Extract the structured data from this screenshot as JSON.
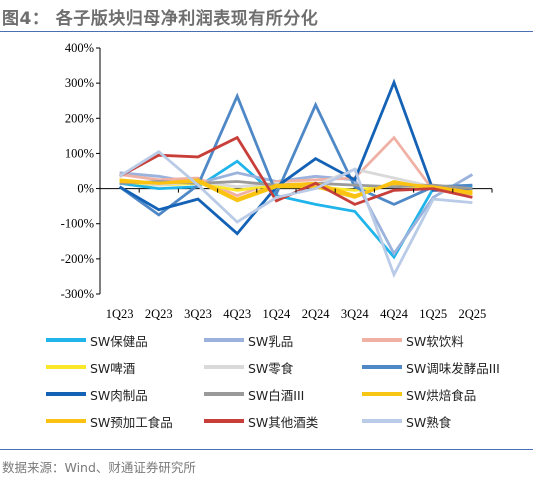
{
  "header": {
    "title": "图4：  各子版块归母净利润表现有所分化",
    "source": "数据来源：Wind、财通证券研究所"
  },
  "chart_data": {
    "type": "line",
    "categories": [
      "1Q23",
      "2Q23",
      "3Q23",
      "4Q23",
      "1Q24",
      "2Q24",
      "3Q24",
      "4Q24",
      "1Q25",
      "2Q25"
    ],
    "ylim": [
      -300,
      400
    ],
    "yticks": [
      -300,
      -200,
      -100,
      0,
      100,
      200,
      300,
      400
    ],
    "ytick_labels": [
      "-300%",
      "-200%",
      "-100%",
      "0%",
      "100%",
      "200%",
      "300%",
      "400%"
    ],
    "grid": false,
    "legend_position": "bottom",
    "series": [
      {
        "name": "SW保健品",
        "color": "#1fb4ea",
        "values": [
          15,
          0,
          5,
          78,
          -20,
          -45,
          -65,
          -195,
          0,
          5
        ]
      },
      {
        "name": "SW乳品",
        "color": "#9bb3dc",
        "values": [
          45,
          35,
          15,
          45,
          20,
          35,
          25,
          -185,
          -25,
          40
        ]
      },
      {
        "name": "SW软饮料",
        "color": "#f0b1a5",
        "values": [
          40,
          25,
          30,
          -20,
          20,
          25,
          30,
          145,
          -5,
          -15
        ]
      },
      {
        "name": "SW啤酒",
        "color": "#fbe72a",
        "values": [
          20,
          10,
          15,
          -5,
          10,
          5,
          -5,
          10,
          0,
          -5
        ]
      },
      {
        "name": "SW零食",
        "color": "#d9d9d9",
        "values": [
          25,
          10,
          20,
          5,
          15,
          10,
          55,
          30,
          5,
          0
        ]
      },
      {
        "name": "SW调味发酵品III",
        "color": "#4f88c6",
        "values": [
          5,
          -75,
          10,
          263,
          -15,
          238,
          5,
          -45,
          5,
          10
        ]
      },
      {
        "name": "SW肉制品",
        "color": "#1362b6",
        "values": [
          5,
          -60,
          -30,
          -128,
          5,
          85,
          25,
          302,
          -5,
          0
        ]
      },
      {
        "name": "SW白酒III",
        "color": "#9a9a9a",
        "values": [
          15,
          20,
          15,
          20,
          10,
          15,
          10,
          5,
          10,
          0
        ]
      },
      {
        "name": "SW烘焙食品",
        "color": "#f7c614",
        "values": [
          25,
          15,
          20,
          -35,
          5,
          5,
          -25,
          20,
          0,
          -15
        ]
      },
      {
        "name": "SW预加工食品",
        "color": "#fdc111",
        "values": [
          20,
          15,
          25,
          -30,
          10,
          15,
          -20,
          15,
          5,
          -10
        ]
      },
      {
        "name": "SW其他酒类",
        "color": "#c83f3a",
        "values": [
          35,
          95,
          90,
          145,
          -35,
          15,
          -45,
          -5,
          0,
          -25
        ]
      },
      {
        "name": "SW熟食",
        "color": "#b9cbe6",
        "values": [
          35,
          105,
          10,
          -95,
          -25,
          0,
          55,
          -245,
          -30,
          -40
        ]
      }
    ]
  }
}
